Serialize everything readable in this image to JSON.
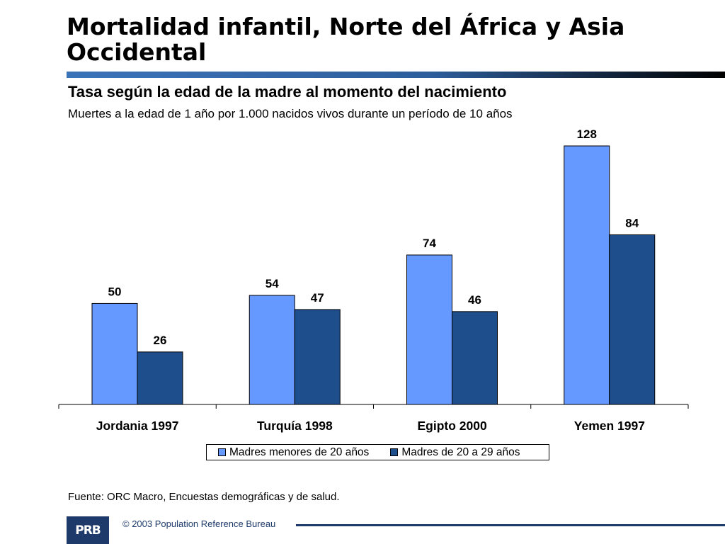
{
  "header": {
    "title_line1": "Mortalidad infantil, Norte del África y Asia",
    "title_line2": "Occidental"
  },
  "chart_data": {
    "type": "bar",
    "title": "Tasa según la edad de la madre al momento del nacimiento",
    "subtitle": "Muertes a la edad de 1 año por 1.000 nacidos vivos durante un período de 10 años",
    "categories": [
      "Jordania 1997",
      "Turquía 1998",
      "Egipto 2000",
      "Yemen 1997"
    ],
    "series": [
      {
        "name": "Madres menores de 20 años",
        "values": [
          50,
          54,
          74,
          128
        ],
        "color": "#6699ff"
      },
      {
        "name": "Madres de 20 a 29 años",
        "values": [
          26,
          47,
          46,
          84
        ],
        "color": "#1f4e8c"
      }
    ],
    "ylim": [
      0,
      128
    ],
    "grid": false,
    "legend": "bottom"
  },
  "footer": {
    "source": "Fuente: ORC Macro, Encuestas demográficas y de salud.",
    "logo": "PRB",
    "copyright": "© 2003 Population Reference Bureau"
  }
}
